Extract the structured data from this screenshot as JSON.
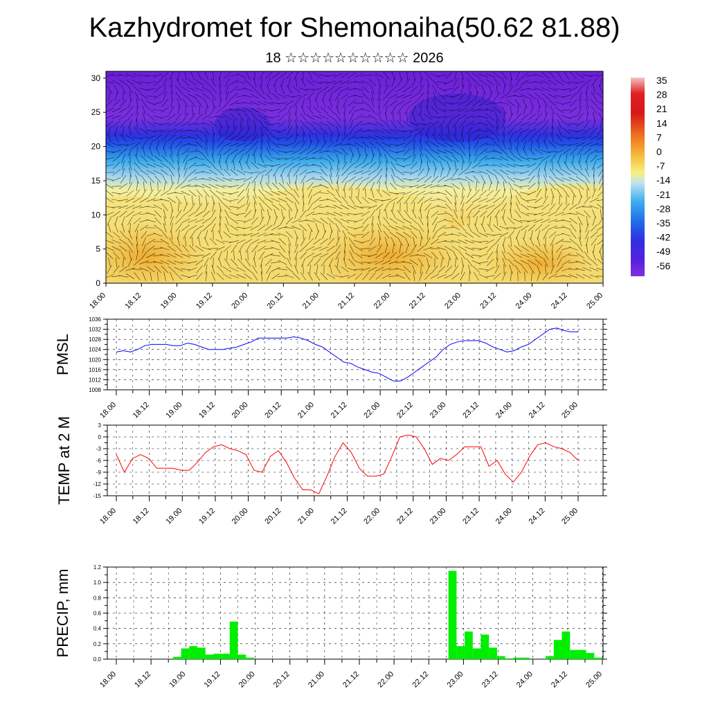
{
  "title": "Kazhydromet for Shemonaiha(50.62 81.88)",
  "subtitle": "18 ☆☆☆☆☆☆☆☆☆☆ 2026",
  "colorbar_labels": [
    "35",
    "28",
    "21",
    "14",
    "7",
    "0",
    "-7",
    "-14",
    "-21",
    "-28",
    "-35",
    "-42",
    "-49",
    "-56"
  ],
  "colors": {
    "pmsl_line": "#0000ff",
    "temp_line": "#ff0000",
    "precip_bar": "#00ee00"
  },
  "chart_data": [
    {
      "type": "heatmap",
      "name": "cross-section",
      "ylim": [
        0,
        31
      ],
      "yticks": [
        "0",
        "5",
        "10",
        "15",
        "20",
        "25",
        "30"
      ],
      "x_ticks": [
        "18.00",
        "18.12",
        "19.00",
        "19.12",
        "20.00",
        "20.12",
        "21.00",
        "21.12",
        "22.00",
        "22.12",
        "23.00",
        "23.12",
        "24.00",
        "24.12",
        "25.00"
      ],
      "colorbar_range": [
        -60,
        38
      ],
      "description_units": "height vs time, temperature shading with wind vectors"
    },
    {
      "type": "line",
      "name": "pmsl",
      "ylabel": "PMSL",
      "ylim": [
        1008,
        1036
      ],
      "yticks": [
        "1008",
        "1012",
        "1016",
        "1020",
        "1024",
        "1028",
        "1032",
        "1036"
      ],
      "x_ticks": [
        "18.00",
        "18.12",
        "19.00",
        "19.12",
        "20.00",
        "20.12",
        "21.00",
        "21.12",
        "22.00",
        "22.12",
        "23.00",
        "23.12",
        "24.00",
        "24.12",
        "25.00"
      ],
      "values": [
        1023,
        1023.5,
        1023,
        1024,
        1025.5,
        1026,
        1026,
        1026,
        1025.5,
        1025.5,
        1026.5,
        1026,
        1025,
        1024,
        1024,
        1024,
        1024.5,
        1025,
        1026,
        1027,
        1028.5,
        1028.5,
        1028.5,
        1028.5,
        1028.5,
        1029,
        1028.5,
        1027.5,
        1026,
        1025,
        1023,
        1021,
        1019,
        1018.5,
        1017,
        1016,
        1015,
        1014.5,
        1013,
        1011.5,
        1011.5,
        1013,
        1015,
        1017,
        1019,
        1021,
        1024,
        1026,
        1027,
        1027.5,
        1027.5,
        1027.5,
        1026.5,
        1025,
        1024,
        1023,
        1023.5,
        1025,
        1026,
        1028,
        1030,
        1032,
        1032.5,
        1031.5,
        1031,
        1031
      ]
    },
    {
      "type": "line",
      "name": "temperature",
      "ylabel": "TEMP at 2 M",
      "ylim": [
        -15,
        3
      ],
      "yticks": [
        "-15",
        "-12",
        "-9",
        "-6",
        "-3",
        "0",
        "3"
      ],
      "x_ticks": [
        "18.00",
        "18.12",
        "19.00",
        "19.12",
        "20.00",
        "20.12",
        "21.00",
        "21.12",
        "22.00",
        "22.12",
        "23.00",
        "23.12",
        "24.00",
        "24.12",
        "25.00"
      ],
      "values": [
        -4.5,
        -9,
        -5.5,
        -4.5,
        -5.5,
        -8,
        -8,
        -8,
        -8.5,
        -8.5,
        -6.5,
        -4,
        -2.5,
        -2,
        -3,
        -3.5,
        -4.5,
        -8.5,
        -9,
        -5,
        -3.5,
        -6.5,
        -10.5,
        -13.5,
        -13.5,
        -14.5,
        -10,
        -5,
        -1.5,
        -4,
        -8,
        -10,
        -10,
        -9.5,
        -5,
        0,
        0.5,
        0,
        -3,
        -7,
        -5.5,
        -6,
        -4.5,
        -2.5,
        -2.5,
        -2.5,
        -7.5,
        -6,
        -9.5,
        -11.5,
        -9,
        -5,
        -2,
        -1.5,
        -2.5,
        -3,
        -4,
        -6
      ]
    },
    {
      "type": "bar",
      "name": "precipitation",
      "ylabel": "PRECIP, mm",
      "ylim": [
        0,
        1.2
      ],
      "yticks": [
        "0.0",
        "0.2",
        "0.4",
        "0.6",
        "0.8",
        "1.0",
        "1.2"
      ],
      "x_ticks": [
        "18.00",
        "18.12",
        "19.00",
        "19.12",
        "20.00",
        "20.12",
        "21.00",
        "21.12",
        "22.00",
        "22.12",
        "23.00",
        "23.12",
        "24.00",
        "24.12",
        "25.00"
      ],
      "values": [
        0,
        0,
        0,
        0,
        0,
        0,
        0,
        0.03,
        0.14,
        0.17,
        0.15,
        0.06,
        0.07,
        0.07,
        0.49,
        0.06,
        0.02,
        0,
        0,
        0,
        0,
        0,
        0,
        0,
        0,
        0,
        0,
        0,
        0,
        0,
        0,
        0,
        0,
        0,
        0,
        0,
        0,
        0,
        0,
        0,
        0,
        1.15,
        0.17,
        0.36,
        0.14,
        0.32,
        0.15,
        0.04,
        0.01,
        0.02,
        0.02,
        0,
        0,
        0.04,
        0.25,
        0.36,
        0.12,
        0.12,
        0.08,
        0.02
      ]
    }
  ]
}
